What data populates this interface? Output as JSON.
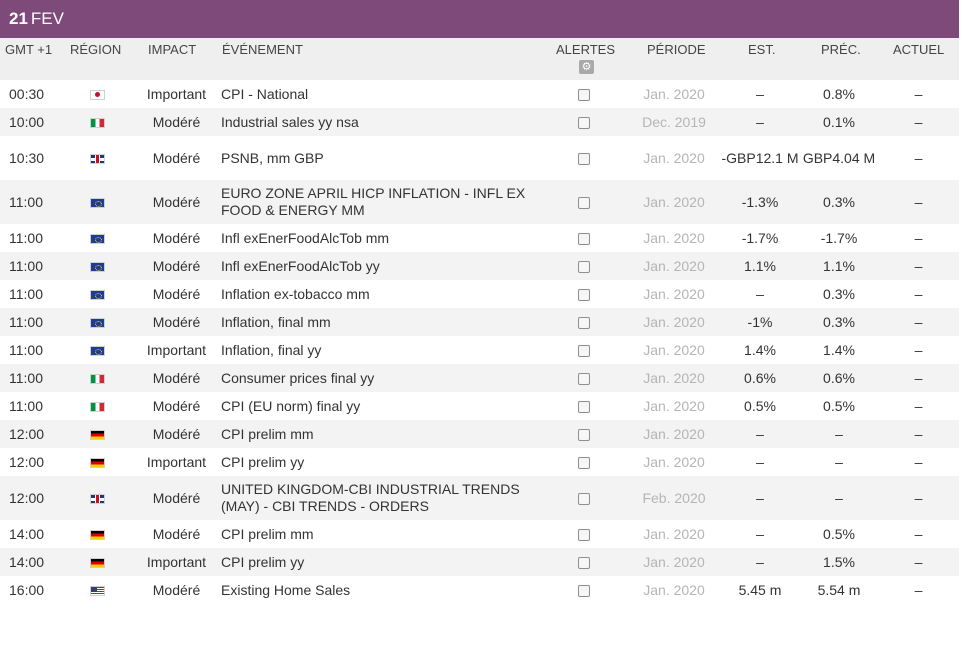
{
  "date": {
    "day": "21",
    "month": "FEV"
  },
  "header": {
    "gmt": "GMT +1",
    "region": "RÉGION",
    "impact": "IMPACT",
    "event": "ÉVÉNEMENT",
    "alerts": "ALERTES",
    "period": "PÉRIODE",
    "est": "EST.",
    "prev": "PRÉC.",
    "actual": "ACTUEL",
    "gear_icon": "gear-icon"
  },
  "rows": [
    {
      "time": "00:30",
      "flag": "japan-flag-icon",
      "impact": "Important",
      "event": "CPI - National",
      "period": "Jan. 2020",
      "est": "–",
      "prev": "0.8%",
      "actual": "–"
    },
    {
      "time": "10:00",
      "flag": "italy-flag-icon",
      "impact": "Modéré",
      "event": "Industrial sales yy nsa",
      "period": "Dec. 2019",
      "est": "–",
      "prev": "0.1%",
      "actual": "–"
    },
    {
      "time": "10:30",
      "flag": "uk-flag-icon",
      "impact": "Modéré",
      "event": "PSNB, mm GBP",
      "period": "Jan. 2020",
      "est": "-GBP12.1 M",
      "prev": "GBP4.04 M",
      "actual": "–"
    },
    {
      "time": "11:00",
      "flag": "eu-flag-icon",
      "impact": "Modéré",
      "event": "EURO ZONE APRIL HICP INFLATION - INFL EX FOOD & ENERGY MM",
      "period": "Jan. 2020",
      "est": "-1.3%",
      "prev": "0.3%",
      "actual": "–"
    },
    {
      "time": "11:00",
      "flag": "eu-flag-icon",
      "impact": "Modéré",
      "event": "Infl exEnerFoodAlcTob mm",
      "period": "Jan. 2020",
      "est": "-1.7%",
      "prev": "-1.7%",
      "actual": "–"
    },
    {
      "time": "11:00",
      "flag": "eu-flag-icon",
      "impact": "Modéré",
      "event": "Infl exEnerFoodAlcTob yy",
      "period": "Jan. 2020",
      "est": "1.1%",
      "prev": "1.1%",
      "actual": "–"
    },
    {
      "time": "11:00",
      "flag": "eu-flag-icon",
      "impact": "Modéré",
      "event": "Inflation ex-tobacco mm",
      "period": "Jan. 2020",
      "est": "–",
      "prev": "0.3%",
      "actual": "–"
    },
    {
      "time": "11:00",
      "flag": "eu-flag-icon",
      "impact": "Modéré",
      "event": "Inflation, final mm",
      "period": "Jan. 2020",
      "est": "-1%",
      "prev": "0.3%",
      "actual": "–"
    },
    {
      "time": "11:00",
      "flag": "eu-flag-icon",
      "impact": "Important",
      "event": "Inflation, final yy",
      "period": "Jan. 2020",
      "est": "1.4%",
      "prev": "1.4%",
      "actual": "–"
    },
    {
      "time": "11:00",
      "flag": "italy-flag-icon",
      "impact": "Modéré",
      "event": "Consumer prices final yy",
      "period": "Jan. 2020",
      "est": "0.6%",
      "prev": "0.6%",
      "actual": "–"
    },
    {
      "time": "11:00",
      "flag": "italy-flag-icon",
      "impact": "Modéré",
      "event": "CPI (EU norm) final yy",
      "period": "Jan. 2020",
      "est": "0.5%",
      "prev": "0.5%",
      "actual": "–"
    },
    {
      "time": "12:00",
      "flag": "germany-flag-icon",
      "impact": "Modéré",
      "event": "CPI prelim mm",
      "period": "Jan. 2020",
      "est": "–",
      "prev": "–",
      "actual": "–"
    },
    {
      "time": "12:00",
      "flag": "germany-flag-icon",
      "impact": "Important",
      "event": "CPI prelim yy",
      "period": "Jan. 2020",
      "est": "–",
      "prev": "–",
      "actual": "–"
    },
    {
      "time": "12:00",
      "flag": "uk-flag-icon",
      "impact": "Modéré",
      "event": "UNITED KINGDOM-CBI INDUSTRIAL TRENDS (MAY) - CBI TRENDS - ORDERS",
      "period": "Feb. 2020",
      "est": "–",
      "prev": "–",
      "actual": "–"
    },
    {
      "time": "14:00",
      "flag": "germany-flag-icon",
      "impact": "Modéré",
      "event": "CPI prelim mm",
      "period": "Jan. 2020",
      "est": "–",
      "prev": "0.5%",
      "actual": "–"
    },
    {
      "time": "14:00",
      "flag": "germany-flag-icon",
      "impact": "Important",
      "event": "CPI prelim yy",
      "period": "Jan. 2020",
      "est": "–",
      "prev": "1.5%",
      "actual": "–"
    },
    {
      "time": "16:00",
      "flag": "us-flag-icon",
      "impact": "Modéré",
      "event": "Existing Home Sales",
      "period": "Jan. 2020",
      "est": "5.45 m",
      "prev": "5.54 m",
      "actual": "–"
    }
  ]
}
